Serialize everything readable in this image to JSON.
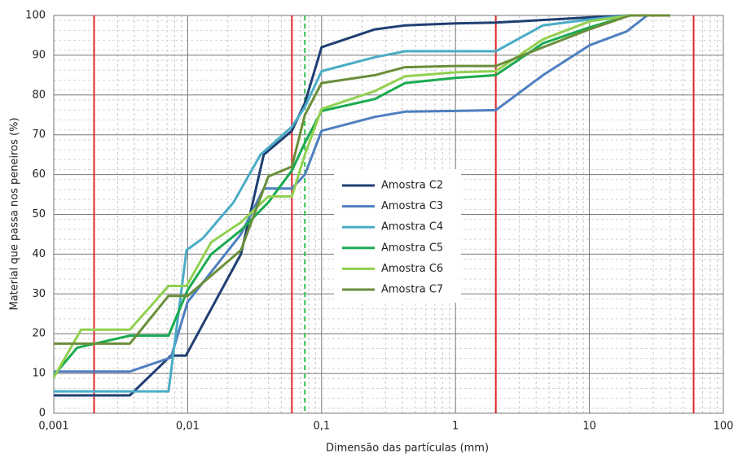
{
  "chart_data": {
    "type": "line",
    "log_x": true,
    "grid": true,
    "minor_grid": true,
    "xlabel": "Dimensão das partículas (mm)",
    "ylabel": "Material que passa nos peneiros (%)",
    "xlim": [
      0.001,
      100
    ],
    "xticks": [
      {
        "value": 0.001,
        "label": "0,001"
      },
      {
        "value": 0.01,
        "label": "0,01"
      },
      {
        "value": 0.1,
        "label": "0,1"
      },
      1,
      10,
      100
    ],
    "ylim": [
      0,
      100
    ],
    "yticks": [
      0,
      10,
      20,
      30,
      40,
      50,
      60,
      70,
      80,
      90,
      100
    ],
    "legend": "center",
    "reference_lines": [
      {
        "x": 0.002,
        "color": "#e0262b",
        "style": "solid"
      },
      {
        "x": 0.06,
        "color": "#e0262b",
        "style": "solid"
      },
      {
        "x": 2,
        "color": "#e0262b",
        "style": "solid"
      },
      {
        "x": 60,
        "color": "#e0262b",
        "style": "solid"
      },
      {
        "x": 0.075,
        "color": "#2fbf4f",
        "style": "dashed"
      }
    ],
    "series": [
      {
        "name": "Amostra C2",
        "color": "#1f3f73",
        "x": [
          0.001,
          0.0037,
          0.0075,
          0.0097,
          0.025,
          0.037,
          0.06,
          0.075,
          0.1,
          0.25,
          0.42,
          1,
          2,
          10,
          20
        ],
        "values": [
          4.5,
          4.5,
          14.5,
          14.5,
          40,
          65,
          71,
          78,
          92,
          96.5,
          97.5,
          98,
          98.2,
          99.5,
          100
        ]
      },
      {
        "name": "Amostra C3",
        "color": "#4f7fc0",
        "x": [
          0.001,
          0.0037,
          0.0075,
          0.01,
          0.025,
          0.037,
          0.06,
          0.075,
          0.1,
          0.25,
          0.42,
          1,
          2,
          4.5,
          10,
          19,
          27,
          40
        ],
        "values": [
          10.5,
          10.5,
          14,
          28,
          45,
          56.5,
          56.5,
          60,
          71,
          74.5,
          75.8,
          76,
          76.2,
          85,
          92.5,
          96,
          100,
          100
        ]
      },
      {
        "name": "Amostra C4",
        "color": "#4bacc6",
        "x": [
          0.001,
          0.0072,
          0.0098,
          0.013,
          0.022,
          0.035,
          0.06,
          0.075,
          0.1,
          0.25,
          0.42,
          1,
          2,
          4.5,
          10,
          20,
          40
        ],
        "values": [
          5.5,
          5.5,
          41,
          44,
          53,
          65,
          72,
          77,
          86,
          89.5,
          91,
          91,
          91,
          97.5,
          99,
          100,
          100
        ]
      },
      {
        "name": "Amostra C5",
        "color": "#1aab50",
        "x": [
          0.001,
          0.0015,
          0.0037,
          0.0072,
          0.01,
          0.015,
          0.025,
          0.04,
          0.06,
          0.075,
          0.1,
          0.25,
          0.42,
          1,
          2,
          4.5,
          10,
          20,
          40
        ],
        "values": [
          9.5,
          16.5,
          19.5,
          19.5,
          31,
          40,
          46,
          53,
          61,
          68,
          76,
          79,
          83,
          84.3,
          85,
          93,
          97,
          100,
          100
        ]
      },
      {
        "name": "Amostra C6",
        "color": "#92d050",
        "x": [
          0.001,
          0.0016,
          0.0037,
          0.0072,
          0.0098,
          0.015,
          0.025,
          0.04,
          0.06,
          0.075,
          0.1,
          0.25,
          0.42,
          1,
          2,
          4.5,
          10,
          20,
          40
        ],
        "values": [
          9,
          21,
          21,
          32,
          32,
          43,
          48,
          54.5,
          54.5,
          65,
          76.5,
          81,
          84.7,
          85.7,
          86,
          94,
          98.5,
          100,
          100
        ]
      },
      {
        "name": "Amostra C7",
        "color": "#6b8e3a",
        "x": [
          0.001,
          0.0037,
          0.0072,
          0.01,
          0.025,
          0.04,
          0.06,
          0.075,
          0.1,
          0.25,
          0.42,
          1,
          2,
          4.5,
          10,
          20,
          40
        ],
        "values": [
          17.5,
          17.5,
          29.5,
          29.5,
          41,
          59.5,
          62,
          75,
          83,
          85,
          87,
          87.3,
          87.3,
          92,
          96.5,
          100,
          100
        ]
      }
    ]
  }
}
